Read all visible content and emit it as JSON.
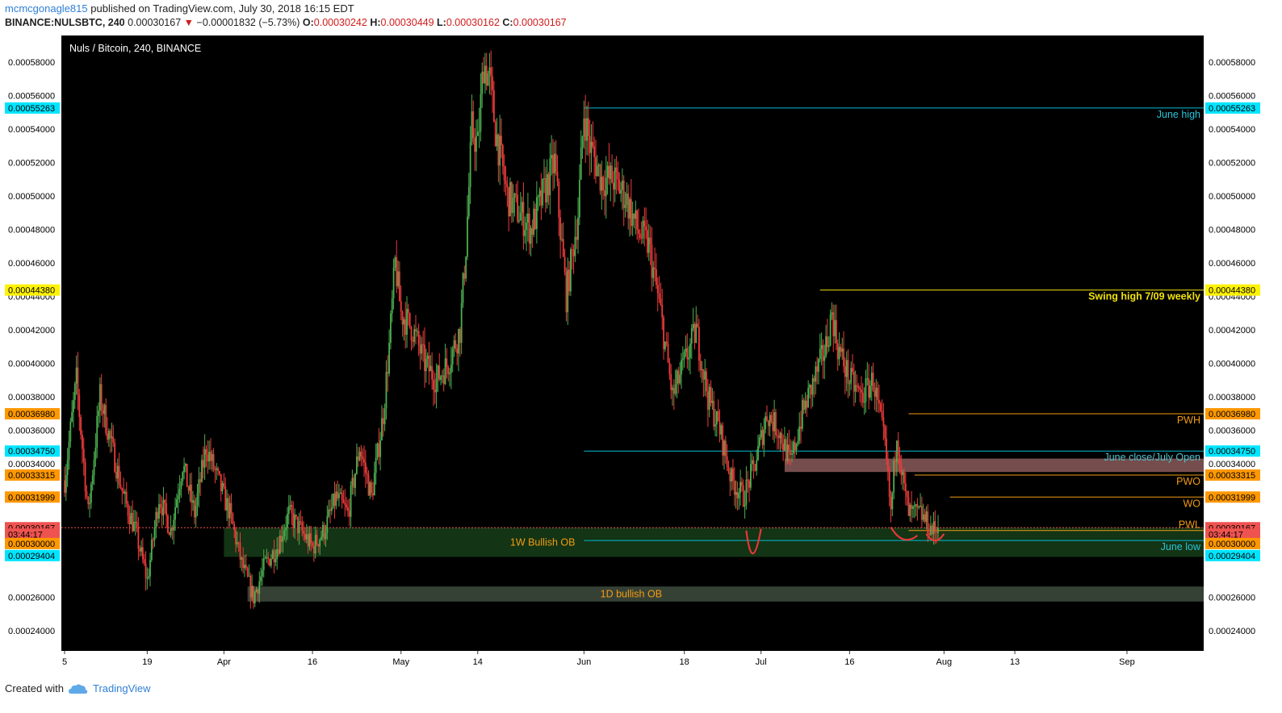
{
  "header": {
    "user": "mcmcgonagle815",
    "published_text": "published on TradingView.com, July 30, 2018 16:15 EDT",
    "symbol": "BINANCE:NULSBTC, 240",
    "last": "0.00030167",
    "change": "−0.00001832 (−5.73%)",
    "open_label": "O:",
    "open": "0.00030242",
    "high_label": "H:",
    "high": "0.00030449",
    "low_label": "L:",
    "low": "0.00030162",
    "close_label": "C:",
    "close": "0.00030167"
  },
  "footer": {
    "created_with": "Created with",
    "brand": "TradingView",
    "logo_icon": "tradingview-cloud-icon"
  },
  "chart_data": {
    "type": "candlestick",
    "title": "Nuls / Bitcoin, 240, BINANCE",
    "ylim": [
      0.000228,
      0.000596
    ],
    "y_ticks": [
      "0.00058000",
      "0.00056000",
      "0.00054000",
      "0.00052000",
      "0.00050000",
      "0.00048000",
      "0.00046000",
      "0.00044000",
      "0.00042000",
      "0.00040000",
      "0.00038000",
      "0.00036000",
      "0.00034000",
      "0.00026000",
      "0.00024000"
    ],
    "x_ticks": [
      {
        "label": "5",
        "day": 0
      },
      {
        "label": "19",
        "day": 14
      },
      {
        "label": "Apr",
        "day": 27
      },
      {
        "label": "16",
        "day": 42
      },
      {
        "label": "May",
        "day": 57
      },
      {
        "label": "14",
        "day": 70
      },
      {
        "label": "Jun",
        "day": 88
      },
      {
        "label": "18",
        "day": 105
      },
      {
        "label": "Jul",
        "day": 118
      },
      {
        "label": "16",
        "day": 133
      },
      {
        "label": "Aug",
        "day": 149
      },
      {
        "label": "13",
        "day": 161
      },
      {
        "label": "Sep",
        "day": 180
      }
    ],
    "day_range": [
      0,
      193
    ],
    "price_path": [
      [
        0,
        0.00033
      ],
      [
        2,
        0.00039
      ],
      [
        4,
        0.00031
      ],
      [
        6,
        0.00038
      ],
      [
        8,
        0.00035
      ],
      [
        10,
        0.00032
      ],
      [
        12,
        0.0003
      ],
      [
        14,
        0.00027
      ],
      [
        16,
        0.00032
      ],
      [
        18,
        0.0003
      ],
      [
        20,
        0.00034
      ],
      [
        22,
        0.00031
      ],
      [
        24,
        0.00035
      ],
      [
        26,
        0.00033
      ],
      [
        28,
        0.00031
      ],
      [
        30,
        0.00028
      ],
      [
        32,
        0.00026
      ],
      [
        34,
        0.00028
      ],
      [
        36,
        0.00029
      ],
      [
        38,
        0.00031
      ],
      [
        40,
        0.0003
      ],
      [
        42,
        0.00029
      ],
      [
        44,
        0.0003
      ],
      [
        46,
        0.00032
      ],
      [
        48,
        0.00031
      ],
      [
        50,
        0.00035
      ],
      [
        52,
        0.00032
      ],
      [
        54,
        0.00037
      ],
      [
        55,
        0.00041
      ],
      [
        56,
        0.00046
      ],
      [
        57,
        0.00043
      ],
      [
        59,
        0.00042
      ],
      [
        61,
        0.0004
      ],
      [
        63,
        0.00039
      ],
      [
        65,
        0.0004
      ],
      [
        67,
        0.00042
      ],
      [
        68,
        0.00047
      ],
      [
        69,
        0.00054
      ],
      [
        70,
        0.00053
      ],
      [
        71,
        0.00058
      ],
      [
        72,
        0.00057
      ],
      [
        73,
        0.00054
      ],
      [
        75,
        0.0005
      ],
      [
        77,
        0.00049
      ],
      [
        79,
        0.00048
      ],
      [
        81,
        0.0005
      ],
      [
        83,
        0.00052
      ],
      [
        85,
        0.00044
      ],
      [
        87,
        0.00049
      ],
      [
        88,
        0.00055
      ],
      [
        89,
        0.00053
      ],
      [
        91,
        0.00051
      ],
      [
        93,
        0.00051
      ],
      [
        95,
        0.0005
      ],
      [
        97,
        0.00048
      ],
      [
        99,
        0.00047
      ],
      [
        101,
        0.00043
      ],
      [
        103,
        0.00038
      ],
      [
        105,
        0.0004
      ],
      [
        107,
        0.00042
      ],
      [
        109,
        0.00038
      ],
      [
        111,
        0.00036
      ],
      [
        113,
        0.00033
      ],
      [
        115,
        0.00032
      ],
      [
        117,
        0.00034
      ],
      [
        119,
        0.00037
      ],
      [
        121,
        0.00036
      ],
      [
        123,
        0.00034
      ],
      [
        125,
        0.00037
      ],
      [
        127,
        0.00039
      ],
      [
        129,
        0.00041
      ],
      [
        130,
        0.00043
      ],
      [
        131,
        0.00041
      ],
      [
        133,
        0.00039
      ],
      [
        135,
        0.00038
      ],
      [
        137,
        0.00039
      ],
      [
        139,
        0.00035
      ],
      [
        140,
        0.00031
      ],
      [
        141,
        0.00036
      ],
      [
        142,
        0.00033
      ],
      [
        143,
        0.00031
      ],
      [
        145,
        0.00031
      ],
      [
        147,
        0.0003
      ],
      [
        148,
        0.0003
      ]
    ],
    "levels": [
      {
        "name": "June high",
        "price": 0.00055263,
        "from_day": 88,
        "color": "#00bcd4",
        "label_color": "#26c6da",
        "label_pos": "below"
      },
      {
        "name": "Swing high 7/09 weekly",
        "price": 0.0004438,
        "from_day": 128,
        "color": "#f1e20a",
        "label_color": "#f1e20a",
        "label_pos": "below"
      },
      {
        "name": "PWH",
        "price": 0.0003698,
        "from_day": 143,
        "color": "#f39c12",
        "label_color": "#f39c12",
        "label_pos": "below"
      },
      {
        "name": "June close/July Open",
        "price": 0.0003475,
        "from_day": 88,
        "color": "#00bcd4",
        "label_color": "#4ec3cf",
        "label_pos": "below"
      },
      {
        "name": "PWO",
        "price": 0.00033315,
        "from_day": 144,
        "color": "#f39c12",
        "label_color": "#f39c12",
        "label_pos": "below"
      },
      {
        "name": "WO",
        "price": 0.00031999,
        "from_day": 150,
        "color": "#f39c12",
        "label_color": "#f39c12",
        "label_pos": "below"
      },
      {
        "name": "PWL",
        "price": 0.0003,
        "from_day": 143,
        "color": "#f39c12",
        "label_color": "#f39c12",
        "label_pos": "above-line"
      },
      {
        "name": "June low",
        "price": 0.00029404,
        "from_day": 88,
        "color": "#00bcd4",
        "label_color": "#26c6da",
        "label_pos": "below"
      }
    ],
    "zones": [
      {
        "name": "1W Bullish OB",
        "top": 0.00030167,
        "bottom": 0.0002842,
        "from_day": 27,
        "color": "rgba(46,125,50,0.42)",
        "label_color": "#f39c12",
        "label_day": 81
      },
      {
        "name": "1D bullish OB",
        "top": 0.0002665,
        "bottom": 0.0002575,
        "from_day": 31,
        "color": "rgba(120,144,120,0.45)",
        "label_color": "#f39c12",
        "label_day": 96
      },
      {
        "name": "",
        "top": 0.000343,
        "bottom": 0.000335,
        "from_day": 122,
        "color": "rgba(215,140,140,0.55)",
        "label_color": "#ffffff",
        "label_day": 0
      }
    ],
    "price_tags": [
      {
        "text": "0.00055263",
        "price": 0.00055263,
        "bg": "#00e5ff",
        "fg": "#000000",
        "sides": [
          "left",
          "right"
        ]
      },
      {
        "text": "0.00044380",
        "price": 0.0004438,
        "bg": "#fff200",
        "fg": "#000000",
        "sides": [
          "left",
          "right"
        ]
      },
      {
        "text": "0.00036980",
        "price": 0.0003698,
        "bg": "#ff9800",
        "fg": "#000000",
        "sides": [
          "left",
          "right"
        ]
      },
      {
        "text": "0.00034750",
        "price": 0.0003475,
        "bg": "#00e5ff",
        "fg": "#000000",
        "sides": [
          "left",
          "right"
        ]
      },
      {
        "text": "0.00033315",
        "price": 0.00033315,
        "bg": "#ff9800",
        "fg": "#000000",
        "sides": [
          "left",
          "right"
        ]
      },
      {
        "text": "0.00031999",
        "price": 0.00031999,
        "bg": "#ff9800",
        "fg": "#000000",
        "sides": [
          "left",
          "right"
        ]
      },
      {
        "text": "0.00030167",
        "price": 0.00030167,
        "bg": "#ef5350",
        "fg": "#000000",
        "sides": [
          "left",
          "right"
        ]
      },
      {
        "text": "03:44:17",
        "price": 0.0002978,
        "bg": "#ef5350",
        "fg": "#000000",
        "sides": [
          "left",
          "right"
        ]
      },
      {
        "text": "0.00030000",
        "price": 0.0002922,
        "bg": "#ff9800",
        "fg": "#000000",
        "sides": [
          "left",
          "right"
        ]
      },
      {
        "text": "0.00029404",
        "price": 0.000285,
        "bg": "#00e5ff",
        "fg": "#000000",
        "sides": [
          "left",
          "right"
        ]
      }
    ],
    "current_price": 0.00030167,
    "colors": {
      "background": "#000000",
      "up": "#4caf50",
      "down": "#ef3b3b",
      "axis_text": "#000000",
      "axis_bg": "#ffffff",
      "current_line": "#ef5350",
      "annotation": "#e53935"
    }
  }
}
